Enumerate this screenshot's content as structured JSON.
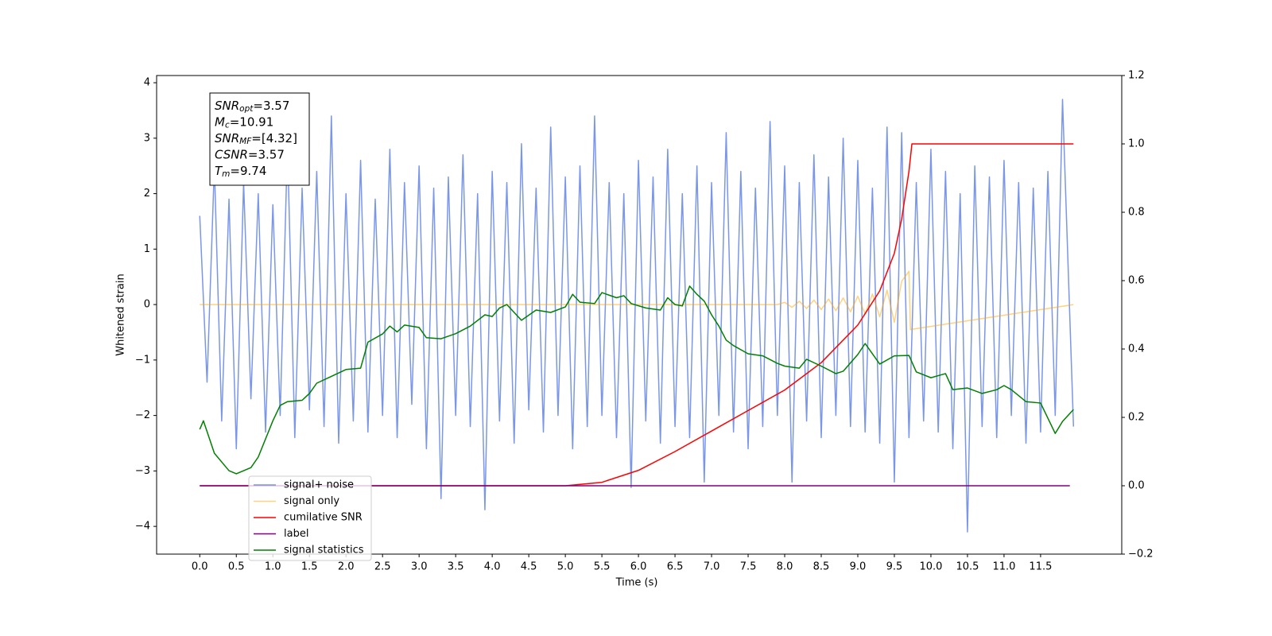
{
  "chart_data": {
    "type": "line",
    "xlabel": "Time (s)",
    "ylabel": "Whitened strain",
    "xlim": [
      -0.59,
      12.61
    ],
    "ylim": [
      -4.5,
      4.13
    ],
    "y2lim": [
      -0.2,
      1.2
    ],
    "xticks": [
      {
        "value": 0,
        "label": "0.0"
      },
      {
        "value": 0.5,
        "label": "0.5"
      },
      {
        "value": 1,
        "label": "1.0"
      },
      {
        "value": 1.5,
        "label": "1.5"
      },
      {
        "value": 2,
        "label": "2.0"
      },
      {
        "value": 2.5,
        "label": "2.5"
      },
      {
        "value": 3,
        "label": "3.0"
      },
      {
        "value": 3.5,
        "label": "3.5"
      },
      {
        "value": 4,
        "label": "4.0"
      },
      {
        "value": 4.5,
        "label": "4.5"
      },
      {
        "value": 5,
        "label": "5.0"
      },
      {
        "value": 5.5,
        "label": "5.5"
      },
      {
        "value": 6,
        "label": "6.0"
      },
      {
        "value": 6.5,
        "label": "6.5"
      },
      {
        "value": 7,
        "label": "7.0"
      },
      {
        "value": 7.5,
        "label": "7.5"
      },
      {
        "value": 8,
        "label": "8.0"
      },
      {
        "value": 8.5,
        "label": "8.5"
      },
      {
        "value": 9,
        "label": "9.0"
      },
      {
        "value": 9.5,
        "label": "9.5"
      },
      {
        "value": 10,
        "label": "10.0"
      },
      {
        "value": 10.5,
        "label": "10.5"
      },
      {
        "value": 11,
        "label": "11.0"
      },
      {
        "value": 11.5,
        "label": "11.5"
      }
    ],
    "yticks": [
      {
        "value": -4,
        "label": "−4"
      },
      {
        "value": -3,
        "label": "−3"
      },
      {
        "value": -2,
        "label": "−2"
      },
      {
        "value": -1,
        "label": "−1"
      },
      0,
      1,
      2,
      3,
      4
    ],
    "y2ticks": [
      {
        "value": -0.2,
        "label": "−0.2"
      },
      {
        "value": 0,
        "label": "0.0"
      },
      0.2,
      0.4,
      0.6,
      0.8,
      {
        "value": 1,
        "label": "1.0"
      },
      1.2
    ],
    "legend": "lower left",
    "annotation": [
      {
        "base": "SNR",
        "sub": "opt",
        "text": "=3.57"
      },
      {
        "base": "M",
        "sub": "c",
        "text": "=10.91"
      },
      {
        "base": "SNR",
        "sub": "MF",
        "text": "=[4.32]"
      },
      {
        "base": "CSNR",
        "sub": "",
        "text": "=3.57"
      },
      {
        "base": "T",
        "sub": "m",
        "text": "=9.74"
      }
    ],
    "series": [
      {
        "name": "signal+ noise",
        "color": "#4169e1",
        "alpha": 0.7,
        "axis": "y",
        "x": [
          0,
          0.1,
          0.2,
          0.3,
          0.4,
          0.5,
          0.6,
          0.7,
          0.8,
          0.9,
          1,
          1.1,
          1.2,
          1.3,
          1.4,
          1.5,
          1.6,
          1.7,
          1.8,
          1.9,
          2,
          2.1,
          2.2,
          2.3,
          2.4,
          2.5,
          2.6,
          2.7,
          2.8,
          2.9,
          3,
          3.1,
          3.2,
          3.3,
          3.4,
          3.5,
          3.6,
          3.7,
          3.8,
          3.9,
          4,
          4.1,
          4.2,
          4.3,
          4.4,
          4.5,
          4.6,
          4.7,
          4.8,
          4.9,
          5,
          5.1,
          5.2,
          5.3,
          5.4,
          5.5,
          5.6,
          5.7,
          5.8,
          5.9,
          6,
          6.1,
          6.2,
          6.3,
          6.4,
          6.5,
          6.6,
          6.7,
          6.8,
          6.9,
          7,
          7.1,
          7.2,
          7.3,
          7.4,
          7.5,
          7.6,
          7.7,
          7.8,
          7.9,
          8,
          8.1,
          8.2,
          8.3,
          8.4,
          8.5,
          8.6,
          8.7,
          8.8,
          8.9,
          9,
          9.1,
          9.2,
          9.3,
          9.4,
          9.5,
          9.6,
          9.7,
          9.8,
          9.9,
          10,
          10.1,
          10.2,
          10.3,
          10.4,
          10.5,
          10.6,
          10.7,
          10.8,
          10.9,
          11,
          11.1,
          11.2,
          11.3,
          11.4,
          11.5,
          11.6,
          11.7,
          11.8,
          11.95
        ],
        "values": [
          1.6,
          -1.4,
          2.5,
          -2.1,
          1.9,
          -2.6,
          2.2,
          -1.7,
          2.0,
          -2.3,
          1.8,
          -2.0,
          2.9,
          -2.4,
          2.1,
          -1.9,
          2.4,
          -2.2,
          3.4,
          -2.5,
          2.0,
          -2.1,
          2.6,
          -2.3,
          1.9,
          -2.0,
          2.8,
          -2.4,
          2.2,
          -1.8,
          2.5,
          -2.6,
          2.1,
          -3.5,
          2.3,
          -2.0,
          2.7,
          -2.2,
          2.0,
          -3.7,
          2.4,
          -2.1,
          2.2,
          -2.5,
          2.9,
          -1.9,
          2.1,
          -2.3,
          3.2,
          -2.0,
          2.3,
          -2.6,
          2.5,
          -2.2,
          3.4,
          -2.0,
          2.2,
          -2.4,
          2.0,
          -3.3,
          2.6,
          -2.1,
          2.3,
          -2.5,
          2.8,
          -2.2,
          2.0,
          -2.4,
          2.5,
          -3.2,
          2.2,
          -2.0,
          3.1,
          -2.3,
          2.4,
          -2.6,
          2.1,
          -2.2,
          3.3,
          -2.0,
          2.5,
          -3.2,
          2.2,
          -2.1,
          2.7,
          -2.4,
          2.3,
          -2.0,
          3.0,
          -2.2,
          2.6,
          -2.3,
          2.1,
          -2.5,
          3.2,
          -3.2,
          3.1,
          -2.4,
          2.2,
          -2.1,
          2.8,
          -2.3,
          2.4,
          -2.6,
          2.0,
          -4.1,
          2.5,
          -2.2,
          2.3,
          -2.4,
          2.6,
          -2.0,
          2.2,
          -2.5,
          2.1,
          -2.3,
          2.4,
          -2.0,
          3.7,
          -2.2
        ]
      },
      {
        "name": "signal only",
        "color": "#ffa500",
        "alpha": 0.5,
        "axis": "y",
        "x": [
          0,
          7.9,
          8.0,
          8.1,
          8.2,
          8.3,
          8.4,
          8.5,
          8.6,
          8.7,
          8.8,
          8.9,
          9.0,
          9.1,
          9.2,
          9.3,
          9.4,
          9.5,
          9.6,
          9.7,
          9.72,
          11.95
        ],
        "values": [
          0,
          0,
          0.04,
          -0.05,
          0.06,
          -0.07,
          0.08,
          -0.09,
          0.1,
          -0.11,
          0.12,
          -0.13,
          0.15,
          -0.17,
          0.19,
          -0.22,
          0.26,
          -0.32,
          0.42,
          0.6,
          -0.45,
          0
        ]
      },
      {
        "name": "cumilative SNR",
        "color": "#ff0000",
        "alpha": 1,
        "axis": "y2",
        "x": [
          0,
          5.0,
          5.5,
          6.0,
          6.5,
          7.0,
          7.5,
          8.0,
          8.5,
          9.0,
          9.3,
          9.5,
          9.6,
          9.7,
          9.74,
          11.95
        ],
        "values": [
          0,
          0,
          0.01,
          0.045,
          0.1,
          0.16,
          0.22,
          0.28,
          0.36,
          0.47,
          0.57,
          0.68,
          0.78,
          0.92,
          1,
          1
        ]
      },
      {
        "name": "label",
        "color": "#800080",
        "alpha": 1,
        "axis": "y2",
        "x": [
          0,
          11.9
        ],
        "values": [
          0,
          0
        ]
      },
      {
        "name": "signal statistics",
        "color": "#008000",
        "alpha": 1,
        "axis": "y2",
        "x": [
          0,
          0.05,
          0.2,
          0.4,
          0.5,
          0.7,
          0.8,
          1.0,
          1.1,
          1.2,
          1.4,
          1.5,
          1.6,
          1.8,
          2.0,
          2.2,
          2.3,
          2.5,
          2.6,
          2.7,
          2.8,
          3.0,
          3.1,
          3.3,
          3.5,
          3.7,
          3.9,
          4.0,
          4.1,
          4.2,
          4.4,
          4.6,
          4.8,
          5.0,
          5.1,
          5.2,
          5.4,
          5.5,
          5.7,
          5.8,
          5.9,
          6.1,
          6.3,
          6.4,
          6.5,
          6.6,
          6.7,
          6.8,
          6.9,
          7.0,
          7.1,
          7.2,
          7.3,
          7.5,
          7.7,
          7.9,
          8.0,
          8.2,
          8.3,
          8.5,
          8.7,
          8.8,
          9.0,
          9.1,
          9.3,
          9.5,
          9.7,
          9.8,
          10.0,
          10.2,
          10.3,
          10.5,
          10.7,
          10.9,
          11.0,
          11.1,
          11.3,
          11.5,
          11.7,
          11.8,
          11.95
        ],
        "values": [
          0.165,
          0.19,
          0.095,
          0.044,
          0.035,
          0.053,
          0.084,
          0.19,
          0.235,
          0.246,
          0.25,
          0.27,
          0.3,
          0.32,
          0.34,
          0.344,
          0.42,
          0.444,
          0.467,
          0.45,
          0.47,
          0.463,
          0.433,
          0.43,
          0.445,
          0.467,
          0.5,
          0.495,
          0.52,
          0.53,
          0.484,
          0.514,
          0.507,
          0.523,
          0.56,
          0.537,
          0.533,
          0.565,
          0.55,
          0.556,
          0.533,
          0.52,
          0.514,
          0.55,
          0.53,
          0.526,
          0.584,
          0.56,
          0.54,
          0.5,
          0.467,
          0.426,
          0.41,
          0.386,
          0.38,
          0.358,
          0.35,
          0.344,
          0.37,
          0.35,
          0.328,
          0.335,
          0.384,
          0.416,
          0.356,
          0.38,
          0.381,
          0.333,
          0.316,
          0.328,
          0.281,
          0.286,
          0.27,
          0.281,
          0.293,
          0.281,
          0.246,
          0.242,
          0.153,
          0.188,
          0.223
        ]
      }
    ]
  }
}
